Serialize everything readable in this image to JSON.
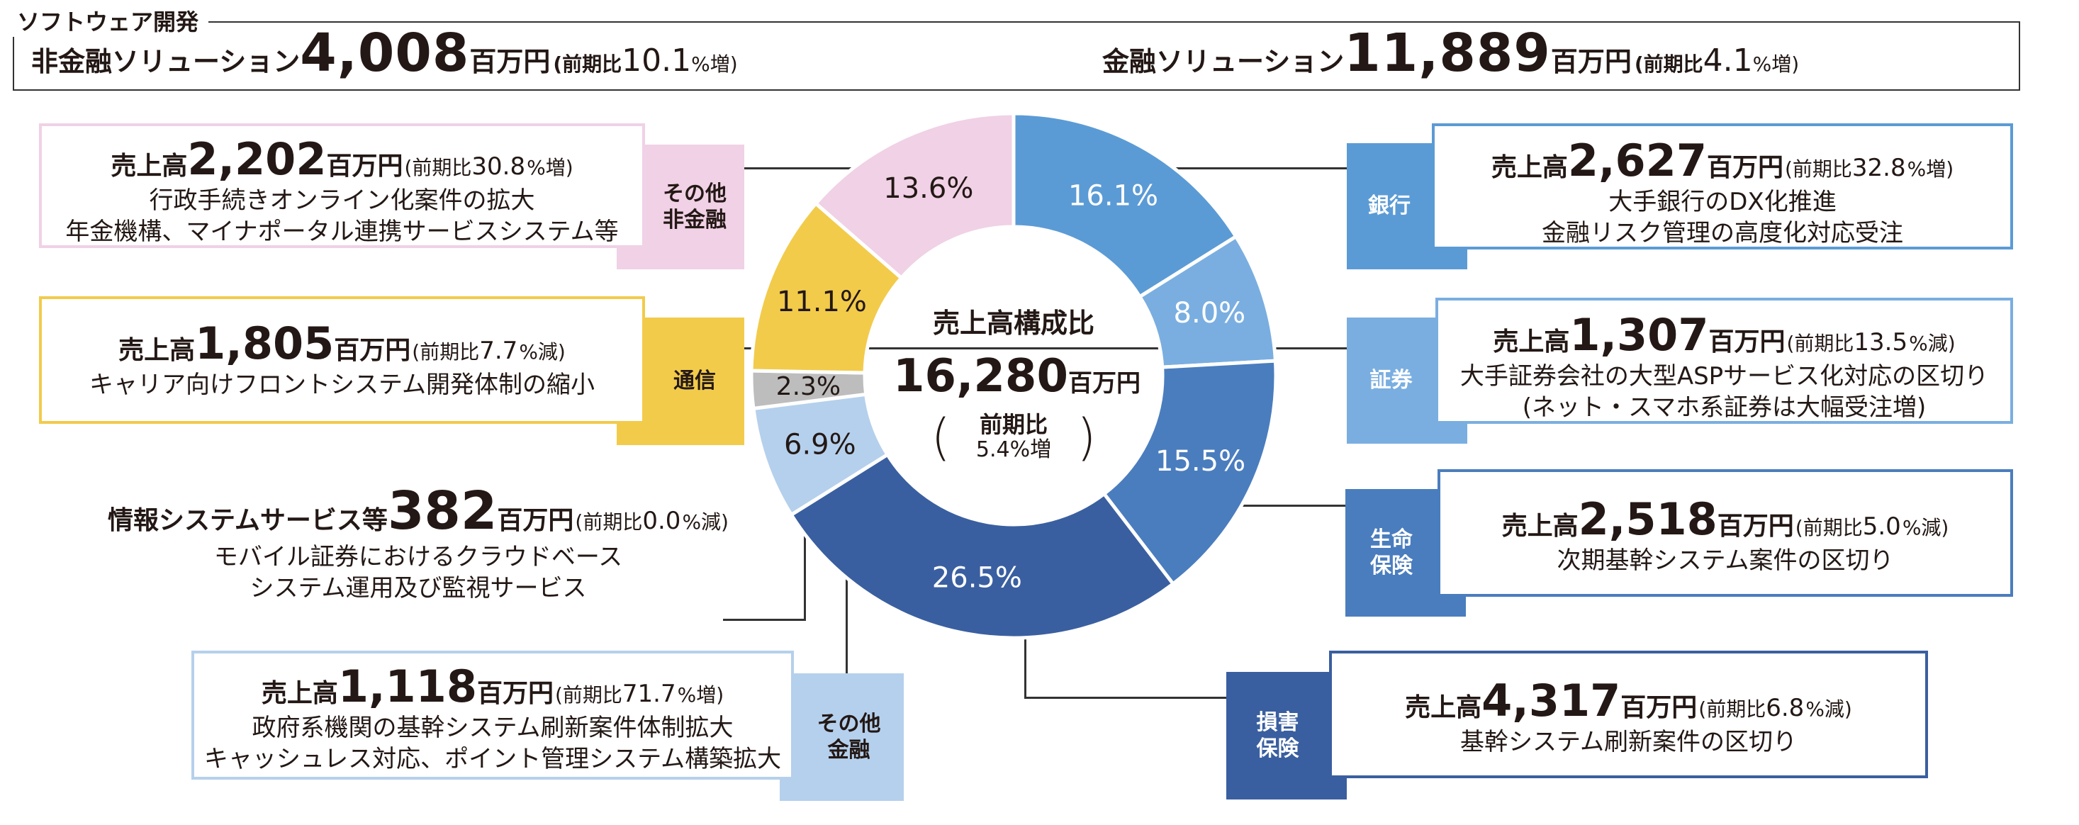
{
  "header": {
    "category": "ソフトウェア開発",
    "non_finance": {
      "name": "非金融ソリューション",
      "value": "4,008",
      "unit": "百万円",
      "prefix": "(前期比",
      "rate": "10.1",
      "suffix": "%増)"
    },
    "finance": {
      "name": "金融ソリューション",
      "value": "11,889",
      "unit": "百万円",
      "prefix": "(前期比",
      "rate": "4.1",
      "suffix": "%増)"
    }
  },
  "center": {
    "title": "売上高構成比",
    "value": "16,280",
    "unit": "百万円",
    "yoy_label": "前期比",
    "yoy_value": "5.4%増",
    "paren_open": "(",
    "paren_close": ")"
  },
  "chart_data": {
    "type": "pie",
    "donut": true,
    "slices": [
      {
        "label": "銀行",
        "value": 16.1,
        "text": "16.1%",
        "color": "#5b9bd5"
      },
      {
        "label": "証券",
        "value": 8.0,
        "text": "8.0%",
        "color": "#7aaee0"
      },
      {
        "label": "生命保険",
        "value": 15.5,
        "text": "15.5%",
        "color": "#4a7dbe"
      },
      {
        "label": "損害保険",
        "value": 26.5,
        "text": "26.5%",
        "color": "#3a5fa0"
      },
      {
        "label": "その他金融",
        "value": 6.9,
        "text": "6.9%",
        "color": "#b5d0ec"
      },
      {
        "label": "情報システムサービス等",
        "value": 2.3,
        "text": "2.3%",
        "color": "#bdbdbd"
      },
      {
        "label": "通信",
        "value": 11.1,
        "text": "11.1%",
        "color": "#f2cb4b"
      },
      {
        "label": "その他非金融",
        "value": 13.6,
        "text": "13.6%",
        "color": "#f0d1e5"
      }
    ]
  },
  "segments": {
    "ginko": {
      "tag_lines": [
        "銀行"
      ],
      "sales_label": "売上高",
      "value": "2,627",
      "unit": "百万円",
      "prefix": "(前期比",
      "rate": "32.8",
      "suffix": "%増)",
      "desc": [
        "大手銀行のDX化推進",
        "金融リスク管理の高度化対応受注"
      ]
    },
    "shoken": {
      "tag_lines": [
        "証券"
      ],
      "sales_label": "売上高",
      "value": "1,307",
      "unit": "百万円",
      "prefix": "(前期比",
      "rate": "13.5",
      "suffix": "%減)",
      "desc": [
        "大手証券会社の大型ASPサービス化対応の区切り",
        "(ネット・スマホ系証券は大幅受注増)"
      ]
    },
    "seimei": {
      "tag_lines": [
        "生命",
        "保険"
      ],
      "sales_label": "売上高",
      "value": "2,518",
      "unit": "百万円",
      "prefix": "(前期比",
      "rate": "5.0",
      "suffix": "%減)",
      "desc": [
        "次期基幹システム案件の区切り"
      ]
    },
    "songai": {
      "tag_lines": [
        "損害",
        "保険"
      ],
      "sales_label": "売上高",
      "value": "4,317",
      "unit": "百万円",
      "prefix": "(前期比",
      "rate": "6.8",
      "suffix": "%減)",
      "desc": [
        "基幹システム刷新案件の区切り"
      ]
    },
    "sonota_kinyu": {
      "tag_lines": [
        "その他",
        "金融"
      ],
      "sales_label": "売上高",
      "value": "1,118",
      "unit": "百万円",
      "prefix": "(前期比",
      "rate": "71.7",
      "suffix": "%増)",
      "desc": [
        "政府系機関の基幹システム刷新案件体制拡大",
        "キャッシュレス対応、ポイント管理システム構築拡大"
      ]
    },
    "joho": {
      "sales_label": "情報システムサービス等",
      "value": "382",
      "unit": "百万円",
      "prefix": "(前期比",
      "rate": "0.0",
      "suffix": "%減)",
      "desc": [
        "モバイル証券におけるクラウドベース",
        "システム運用及び監視サービス"
      ]
    },
    "tsushin": {
      "tag_lines": [
        "通信"
      ],
      "sales_label": "売上高",
      "value": "1,805",
      "unit": "百万円",
      "prefix": "(前期比",
      "rate": "7.7",
      "suffix": "%減)",
      "desc": [
        "キャリア向けフロントシステム開発体制の縮小"
      ]
    },
    "sonota_hikinyu": {
      "tag_lines": [
        "その他",
        "非金融"
      ],
      "sales_label": "売上高",
      "value": "2,202",
      "unit": "百万円",
      "prefix": "(前期比",
      "rate": "30.8",
      "suffix": "%増)",
      "desc": [
        "行政手続きオンライン化案件の拡大",
        "年金機構、マイナポータル連携サービスシステム等"
      ]
    }
  }
}
